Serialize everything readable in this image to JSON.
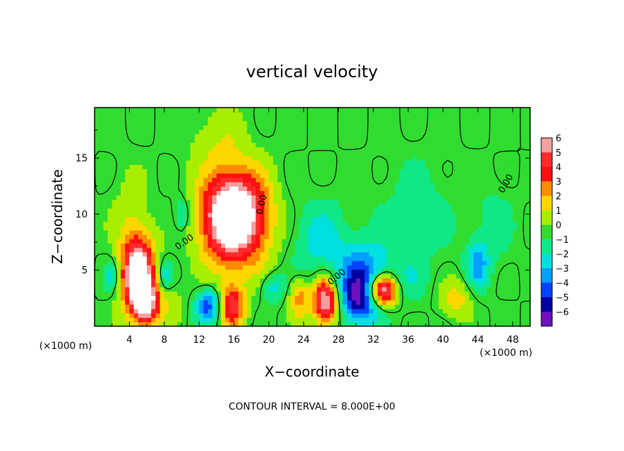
{
  "chart_data": {
    "type": "heatmap",
    "title": "vertical velocity",
    "xlabel": "X−coordinate",
    "ylabel": "Z−coordinate",
    "x_unit_left": "(×1000 m)",
    "x_unit_right": "(×1000 m)",
    "xlim": [
      0,
      50
    ],
    "ylim": [
      0,
      19.5
    ],
    "xticks": [
      4,
      8,
      12,
      16,
      20,
      24,
      28,
      32,
      36,
      40,
      44,
      48
    ],
    "xtick_labels": [
      "4",
      "8",
      "12",
      "16",
      "20",
      "24",
      "28",
      "32",
      "36",
      "40",
      "44",
      "48"
    ],
    "yticks": [
      5,
      10,
      15
    ],
    "ytick_labels": [
      "5",
      "10",
      "15"
    ],
    "colorbar": {
      "levels": [
        6,
        5,
        4,
        3,
        2,
        1,
        0,
        -1,
        -2,
        -3,
        -4,
        -5,
        -6
      ],
      "labels": [
        "6",
        "5",
        "4",
        "3",
        "2",
        "1",
        "0",
        "−1",
        "−2",
        "−3",
        "−4",
        "−5",
        "−6"
      ],
      "colors": [
        "#f4a0a0",
        "#ff2a2a",
        "#ff1010",
        "#ff8c00",
        "#ffd700",
        "#a8ee00",
        "#30dc30",
        "#10e888",
        "#00e0e0",
        "#00a0ff",
        "#0044ff",
        "#0000a0",
        "#7010c0"
      ],
      "saturation_color_high": "#ffffff",
      "background_color": "#22e022"
    },
    "contour_label": "0.00",
    "features": [
      {
        "x": 5.0,
        "z": 4.5,
        "value": 9,
        "sx": 1.3,
        "sz": 2.4
      },
      {
        "x": 6.0,
        "z": 2.0,
        "value": 5,
        "sx": 1.0,
        "sz": 1.4
      },
      {
        "x": 15.8,
        "z": 9.8,
        "value": 10,
        "sx": 2.4,
        "sz": 2.8
      },
      {
        "x": 15.8,
        "z": 1.8,
        "value": 5,
        "sx": 1.0,
        "sz": 1.4
      },
      {
        "x": 13.0,
        "z": 1.8,
        "value": -4,
        "sx": 1.0,
        "sz": 1.0
      },
      {
        "x": 26.5,
        "z": 2.3,
        "value": 7,
        "sx": 1.0,
        "sz": 1.5
      },
      {
        "x": 23.5,
        "z": 2.5,
        "value": 3,
        "sx": 0.8,
        "sz": 1.2
      },
      {
        "x": 33.0,
        "z": 3.2,
        "value": 8,
        "sx": 1.2,
        "sz": 1.0
      },
      {
        "x": 30.5,
        "z": 2.5,
        "value": -5,
        "sx": 1.6,
        "sz": 1.6
      },
      {
        "x": 31.0,
        "z": 5.0,
        "value": -3,
        "sx": 2.2,
        "sz": 2.0
      },
      {
        "x": 26.0,
        "z": 7.5,
        "value": -2,
        "sx": 2.0,
        "sz": 2.5
      },
      {
        "x": 41.5,
        "z": 2.5,
        "value": 2,
        "sx": 1.3,
        "sz": 1.2
      },
      {
        "x": 44.0,
        "z": 5.5,
        "value": -3,
        "sx": 0.9,
        "sz": 1.5
      },
      {
        "x": 2.0,
        "z": 4.5,
        "value": -2,
        "sx": 0.6,
        "sz": 1.0
      },
      {
        "x": 8.0,
        "z": 4.5,
        "value": -2,
        "sx": 0.6,
        "sz": 1.0
      },
      {
        "x": 10.0,
        "z": 10.0,
        "value": -2,
        "sx": 0.6,
        "sz": 1.0
      },
      {
        "x": 4.0,
        "z": 10.0,
        "value": 1,
        "sx": 1.5,
        "sz": 3.0
      },
      {
        "x": 19.0,
        "z": 9.5,
        "value": 1,
        "sx": 1.5,
        "sz": 3.0
      },
      {
        "x": 8.5,
        "z": 2.0,
        "value": 1,
        "sx": 1.5,
        "sz": 1.2
      },
      {
        "x": 14.0,
        "z": 17.0,
        "value": 1,
        "sx": 2.5,
        "sz": 2.0
      },
      {
        "x": 37.0,
        "z": 10.0,
        "value": -1,
        "sx": 3.0,
        "sz": 3.5
      },
      {
        "x": 20.5,
        "z": 3.5,
        "value": -2,
        "sx": 0.9,
        "sz": 0.9
      },
      {
        "x": 36.0,
        "z": 4.0,
        "value": -1,
        "sx": 1.5,
        "sz": 1.5
      },
      {
        "x": 46.0,
        "z": 9.0,
        "value": -1,
        "sx": 1.5,
        "sz": 2.5
      }
    ]
  },
  "footer_note": "CONTOUR INTERVAL = 8.000E+00"
}
